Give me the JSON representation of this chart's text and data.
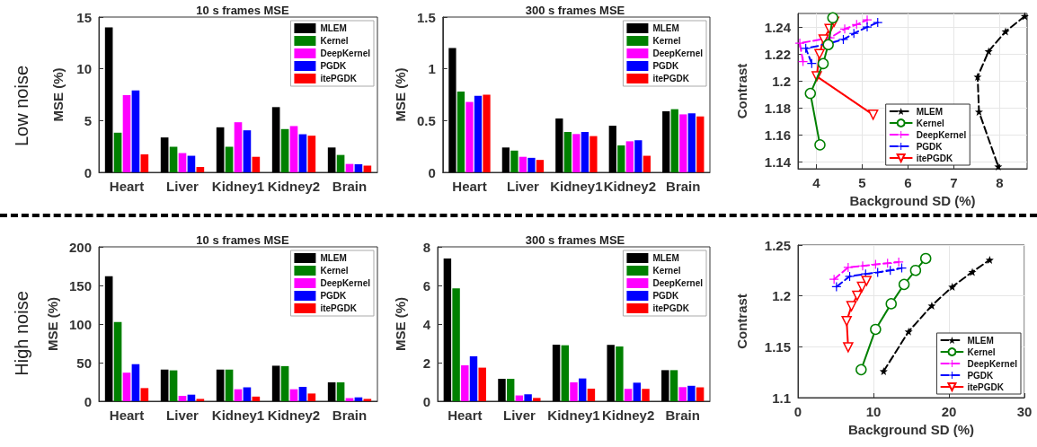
{
  "chart_data": [
    {
      "type": "bar",
      "title": "10 s frames MSE",
      "ylabel": "MSE (%)",
      "annotations": [
        "Low noise"
      ],
      "categories": [
        "Heart",
        "Liver",
        "Kidney1",
        "Kidney2",
        "Brain"
      ],
      "ylim": [
        0,
        15
      ],
      "yticks": [
        0,
        5,
        10,
        15
      ],
      "legend": "top right",
      "series": [
        {
          "name": "MLEM",
          "color": "#000000",
          "values": [
            14.0,
            3.37,
            4.35,
            6.3,
            2.4
          ]
        },
        {
          "name": "Kernel",
          "color": "#008000",
          "values": [
            3.83,
            2.47,
            2.47,
            4.18,
            1.68
          ]
        },
        {
          "name": "DeepKernel",
          "color": "#ff00ff",
          "values": [
            7.45,
            1.86,
            4.84,
            4.47,
            0.81
          ]
        },
        {
          "name": "PGDK",
          "color": "#0000ff",
          "values": [
            7.92,
            1.6,
            4.06,
            3.68,
            0.78
          ]
        },
        {
          "name": "itePGDK",
          "color": "#ff0000",
          "values": [
            1.74,
            0.52,
            1.5,
            3.54,
            0.65
          ]
        }
      ]
    },
    {
      "type": "bar",
      "title": "300 s frames MSE",
      "ylabel": "MSE (%)",
      "categories": [
        "Heart",
        "Liver",
        "Kidney1",
        "Kidney2",
        "Brain"
      ],
      "ylim": [
        0,
        1.5
      ],
      "yticks": [
        0,
        0.5,
        1,
        1.5
      ],
      "legend": "top right",
      "series": [
        {
          "name": "MLEM",
          "color": "#000000",
          "values": [
            1.2,
            0.24,
            0.52,
            0.45,
            0.59
          ]
        },
        {
          "name": "Kernel",
          "color": "#008000",
          "values": [
            0.78,
            0.21,
            0.39,
            0.26,
            0.61
          ]
        },
        {
          "name": "DeepKernel",
          "color": "#ff00ff",
          "values": [
            0.68,
            0.15,
            0.37,
            0.3,
            0.56
          ]
        },
        {
          "name": "PGDK",
          "color": "#0000ff",
          "values": [
            0.74,
            0.14,
            0.39,
            0.31,
            0.57
          ]
        },
        {
          "name": "itePGDK",
          "color": "#ff0000",
          "values": [
            0.75,
            0.12,
            0.35,
            0.16,
            0.54
          ]
        }
      ]
    },
    {
      "type": "line",
      "xlabel": "Background SD (%)",
      "ylabel": "Contrast",
      "xlim": [
        3.6,
        8.6
      ],
      "xticks": [
        4,
        5,
        6,
        7,
        8
      ],
      "ylim": [
        1.135,
        1.25
      ],
      "yticks": [
        1.14,
        1.16,
        1.18,
        1.2,
        1.22,
        1.24
      ],
      "grid": true,
      "legend": "bottom",
      "series": [
        {
          "name": "MLEM",
          "color": "#000000",
          "marker": "star",
          "line_style": "dashed",
          "x": [
            8.55,
            8.13,
            7.76,
            7.52,
            7.55,
            7.97
          ],
          "values": [
            1.248,
            1.2367,
            1.222,
            1.2032,
            1.1772,
            1.1367
          ]
        },
        {
          "name": "Kernel",
          "color": "#008000",
          "marker": "circle",
          "line_style": "solid",
          "x": [
            4.36,
            4.26,
            4.15,
            3.87,
            4.08
          ],
          "values": [
            1.2468,
            1.2269,
            1.2129,
            1.1908,
            1.1527
          ]
        },
        {
          "name": "DeepKernel",
          "color": "#ff00ff",
          "marker": "cross",
          "line_style": "dashed",
          "x": [
            3.71,
            3.64,
            4.3,
            4.62,
            4.88,
            5.11
          ],
          "values": [
            1.2144,
            1.228,
            1.232,
            1.2385,
            1.2418,
            1.2452
          ]
        },
        {
          "name": "PGDK",
          "color": "#0000ff",
          "marker": "cross",
          "line_style": "dashed",
          "x": [
            3.9,
            3.77,
            4.2,
            4.59,
            4.82,
            5.11,
            5.34
          ],
          "values": [
            1.213,
            1.2242,
            1.227,
            1.2308,
            1.2352,
            1.24,
            1.2433
          ]
        },
        {
          "name": "itePGDK",
          "color": "#ff0000",
          "marker": "triangle",
          "line_style": "solid",
          "x": [
            5.24,
            4.01,
            4.07,
            4.16,
            4.29,
            4.39
          ],
          "values": [
            1.175,
            1.2034,
            1.2199,
            1.2308,
            1.2385,
            1.2439
          ]
        }
      ]
    },
    {
      "type": "bar",
      "title": "10 s frames MSE",
      "ylabel": "MSE (%)",
      "annotations": [
        "High noise"
      ],
      "categories": [
        "Heart",
        "Liver",
        "Kidney1",
        "Kidney2",
        "Brain"
      ],
      "ylim": [
        0,
        200
      ],
      "yticks": [
        0,
        50,
        100,
        150,
        200
      ],
      "legend": "top right",
      "series": [
        {
          "name": "MLEM",
          "color": "#000000",
          "values": [
            162,
            41,
            41,
            46,
            24.5
          ]
        },
        {
          "name": "Kernel",
          "color": "#008000",
          "values": [
            102.5,
            40,
            41,
            45.5,
            24.5
          ]
        },
        {
          "name": "DeepKernel",
          "color": "#ff00ff",
          "values": [
            37,
            7,
            15.5,
            15.5,
            4
          ]
        },
        {
          "name": "PGDK",
          "color": "#0000ff",
          "values": [
            48,
            8.5,
            18,
            18.6,
            5
          ]
        },
        {
          "name": "itePGDK",
          "color": "#ff0000",
          "values": [
            17,
            3,
            6,
            10,
            3
          ]
        }
      ]
    },
    {
      "type": "bar",
      "title": "300 s frames MSE",
      "ylabel": "MSE (%)",
      "categories": [
        "Heart",
        "Liver",
        "Kidney1",
        "Kidney2",
        "Brain"
      ],
      "ylim": [
        0,
        8
      ],
      "yticks": [
        0,
        2,
        4,
        6,
        8
      ],
      "legend": "top right",
      "series": [
        {
          "name": "MLEM",
          "color": "#000000",
          "values": [
            7.4,
            1.16,
            2.93,
            2.92,
            1.61
          ]
        },
        {
          "name": "Kernel",
          "color": "#008000",
          "values": [
            5.85,
            1.16,
            2.9,
            2.84,
            1.61
          ]
        },
        {
          "name": "DeepKernel",
          "color": "#ff00ff",
          "values": [
            1.86,
            0.3,
            0.98,
            0.64,
            0.73
          ]
        },
        {
          "name": "PGDK",
          "color": "#0000ff",
          "values": [
            2.33,
            0.36,
            1.18,
            0.96,
            0.8
          ]
        },
        {
          "name": "itePGDK",
          "color": "#ff0000",
          "values": [
            1.74,
            0.17,
            0.65,
            0.64,
            0.72
          ]
        }
      ]
    },
    {
      "type": "line",
      "xlabel": "Background SD (%)",
      "ylabel": "Contrast",
      "xlim": [
        0,
        30
      ],
      "xticks": [
        0,
        10,
        20,
        30
      ],
      "ylim": [
        1.1,
        1.25
      ],
      "yticks": [
        1.1,
        1.15,
        1.2,
        1.25
      ],
      "grid": true,
      "legend": "bottom right",
      "series": [
        {
          "name": "MLEM",
          "color": "#000000",
          "marker": "star",
          "line_style": "dashed",
          "x": [
            11.35,
            14.66,
            17.73,
            20.44,
            23.1,
            25.4
          ],
          "values": [
            1.126,
            1.165,
            1.1905,
            1.209,
            1.2236,
            1.2354
          ]
        },
        {
          "name": "Kernel",
          "color": "#008000",
          "marker": "circle",
          "line_style": "solid",
          "x": [
            8.37,
            10.28,
            12.35,
            14.06,
            15.58,
            16.93
          ],
          "values": [
            1.1275,
            1.1671,
            1.1923,
            1.2113,
            1.2251,
            1.2368
          ]
        },
        {
          "name": "DeepKernel",
          "color": "#ff00ff",
          "marker": "cross",
          "line_style": "dashed",
          "x": [
            4.78,
            6.65,
            8.57,
            10.28,
            11.87,
            13.35
          ],
          "values": [
            1.2163,
            1.228,
            1.2295,
            1.231,
            1.2321,
            1.2333
          ]
        },
        {
          "name": "PGDK",
          "color": "#0000ff",
          "marker": "cross",
          "line_style": "dashed",
          "x": [
            5.1,
            6.85,
            8.96,
            10.56,
            12.23,
            13.75
          ],
          "values": [
            1.209,
            1.2192,
            1.2216,
            1.2231,
            1.2251,
            1.2274
          ]
        },
        {
          "name": "itePGDK",
          "color": "#ff0000",
          "marker": "triangle",
          "line_style": "solid",
          "x": [
            6.65,
            6.45,
            7.09,
            7.85,
            8.49,
            9.08
          ],
          "values": [
            1.1495,
            1.1753,
            1.1899,
            1.2002,
            1.209,
            1.2148
          ]
        }
      ]
    }
  ]
}
